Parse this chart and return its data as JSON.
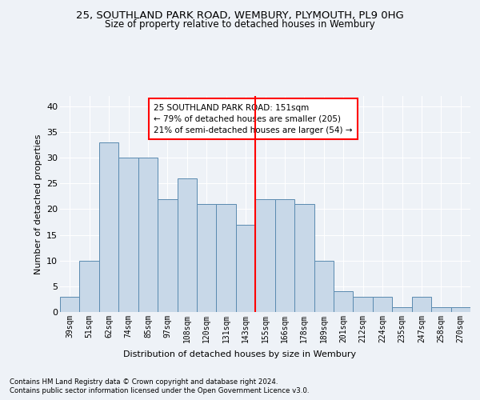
{
  "title1": "25, SOUTHLAND PARK ROAD, WEMBURY, PLYMOUTH, PL9 0HG",
  "title2": "Size of property relative to detached houses in Wembury",
  "xlabel": "Distribution of detached houses by size in Wembury",
  "ylabel": "Number of detached properties",
  "categories": [
    "39sqm",
    "51sqm",
    "62sqm",
    "74sqm",
    "85sqm",
    "97sqm",
    "108sqm",
    "120sqm",
    "131sqm",
    "143sqm",
    "155sqm",
    "166sqm",
    "178sqm",
    "189sqm",
    "201sqm",
    "212sqm",
    "224sqm",
    "235sqm",
    "247sqm",
    "258sqm",
    "270sqm"
  ],
  "values": [
    3,
    10,
    33,
    30,
    30,
    22,
    26,
    21,
    21,
    17,
    22,
    22,
    21,
    10,
    4,
    3,
    3,
    1,
    3,
    1,
    1
  ],
  "bar_color": "#c8d8e8",
  "bar_edge_color": "#5a8ab0",
  "red_line_index": 10,
  "red_line_label": "25 SOUTHLAND PARK ROAD: 151sqm",
  "red_line_sub1": "← 79% of detached houses are smaller (205)",
  "red_line_sub2": "21% of semi-detached houses are larger (54) →",
  "ylim": [
    0,
    42
  ],
  "yticks": [
    0,
    5,
    10,
    15,
    20,
    25,
    30,
    35,
    40
  ],
  "footnote1": "Contains HM Land Registry data © Crown copyright and database right 2024.",
  "footnote2": "Contains public sector information licensed under the Open Government Licence v3.0.",
  "bg_color": "#eef2f7",
  "plot_bg_color": "#eef2f7"
}
